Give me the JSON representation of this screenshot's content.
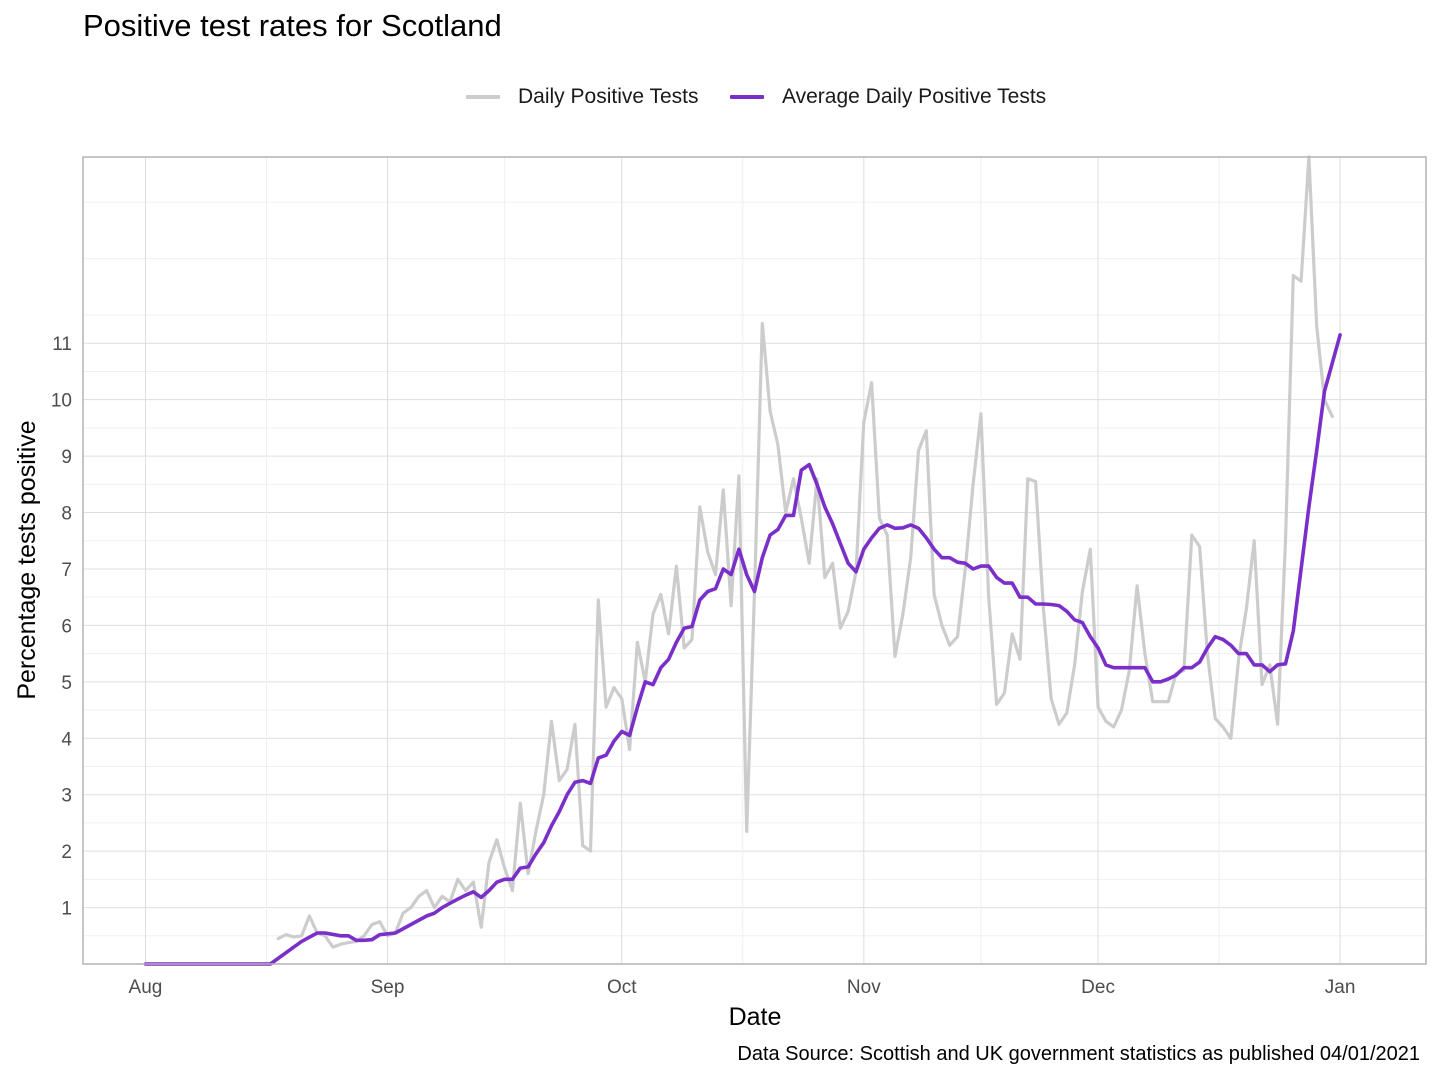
{
  "chart_data": {
    "type": "line",
    "title": "Positive test rates for Scotland",
    "xlabel": "Date",
    "ylabel": "Percentage tests positive",
    "caption": "Data Source: Scottish and UK government statistics as published 04/01/2021",
    "x_ticks": [
      {
        "date": "2020-08-01",
        "label": "Aug"
      },
      {
        "date": "2020-09-01",
        "label": "Sep"
      },
      {
        "date": "2020-10-01",
        "label": "Oct"
      },
      {
        "date": "2020-11-01",
        "label": "Nov"
      },
      {
        "date": "2020-12-01",
        "label": "Dec"
      },
      {
        "date": "2021-01-01",
        "label": "Jan"
      }
    ],
    "xlim": [
      "2020-07-24",
      "2021-01-12"
    ],
    "ylim": [
      0,
      14.3
    ],
    "y_ticks": [
      1,
      2,
      3,
      4,
      5,
      6,
      7,
      8,
      9,
      10,
      11
    ],
    "grid": true,
    "legend_position": "top",
    "series": [
      {
        "name": "Daily Positive Tests",
        "color": "#cccccc",
        "points": [
          [
            "2020-08-18",
            0.45
          ],
          [
            "2020-08-19",
            0.52
          ],
          [
            "2020-08-20",
            0.48
          ],
          [
            "2020-08-21",
            0.5
          ],
          [
            "2020-08-22",
            0.85
          ],
          [
            "2020-08-23",
            0.55
          ],
          [
            "2020-08-24",
            0.5
          ],
          [
            "2020-08-25",
            0.3
          ],
          [
            "2020-08-26",
            0.35
          ],
          [
            "2020-08-27",
            0.38
          ],
          [
            "2020-08-28",
            0.4
          ],
          [
            "2020-08-29",
            0.5
          ],
          [
            "2020-08-30",
            0.7
          ],
          [
            "2020-08-31",
            0.75
          ],
          [
            "2020-09-01",
            0.5
          ],
          [
            "2020-09-02",
            0.55
          ],
          [
            "2020-09-03",
            0.9
          ],
          [
            "2020-09-04",
            1.0
          ],
          [
            "2020-09-05",
            1.2
          ],
          [
            "2020-09-06",
            1.3
          ],
          [
            "2020-09-07",
            1.0
          ],
          [
            "2020-09-08",
            1.2
          ],
          [
            "2020-09-09",
            1.1
          ],
          [
            "2020-09-10",
            1.5
          ],
          [
            "2020-09-11",
            1.3
          ],
          [
            "2020-09-12",
            1.45
          ],
          [
            "2020-09-13",
            0.65
          ],
          [
            "2020-09-14",
            1.8
          ],
          [
            "2020-09-15",
            2.2
          ],
          [
            "2020-09-16",
            1.7
          ],
          [
            "2020-09-17",
            1.3
          ],
          [
            "2020-09-18",
            2.85
          ],
          [
            "2020-09-19",
            1.6
          ],
          [
            "2020-09-20",
            2.35
          ],
          [
            "2020-09-21",
            3.0
          ],
          [
            "2020-09-22",
            4.3
          ],
          [
            "2020-09-23",
            3.25
          ],
          [
            "2020-09-24",
            3.45
          ],
          [
            "2020-09-25",
            4.25
          ],
          [
            "2020-09-26",
            2.1
          ],
          [
            "2020-09-27",
            2.0
          ],
          [
            "2020-09-28",
            6.45
          ],
          [
            "2020-09-29",
            4.55
          ],
          [
            "2020-09-30",
            4.9
          ],
          [
            "2020-10-01",
            4.7
          ],
          [
            "2020-10-02",
            3.8
          ],
          [
            "2020-10-03",
            5.7
          ],
          [
            "2020-10-04",
            5.0
          ],
          [
            "2020-10-05",
            6.2
          ],
          [
            "2020-10-06",
            6.55
          ],
          [
            "2020-10-07",
            5.85
          ],
          [
            "2020-10-08",
            7.05
          ],
          [
            "2020-10-09",
            5.6
          ],
          [
            "2020-10-10",
            5.75
          ],
          [
            "2020-10-11",
            8.1
          ],
          [
            "2020-10-12",
            7.3
          ],
          [
            "2020-10-13",
            6.9
          ],
          [
            "2020-10-14",
            8.4
          ],
          [
            "2020-10-15",
            6.35
          ],
          [
            "2020-10-16",
            8.65
          ],
          [
            "2020-10-17",
            2.35
          ],
          [
            "2020-10-18",
            6.6
          ],
          [
            "2020-10-19",
            11.35
          ],
          [
            "2020-10-20",
            9.8
          ],
          [
            "2020-10-21",
            9.2
          ],
          [
            "2020-10-22",
            8.0
          ],
          [
            "2020-10-23",
            8.6
          ],
          [
            "2020-10-24",
            7.9
          ],
          [
            "2020-10-25",
            7.1
          ],
          [
            "2020-10-26",
            8.6
          ],
          [
            "2020-10-27",
            6.85
          ],
          [
            "2020-10-28",
            7.1
          ],
          [
            "2020-10-29",
            5.95
          ],
          [
            "2020-10-30",
            6.25
          ],
          [
            "2020-10-31",
            6.95
          ],
          [
            "2020-11-01",
            9.6
          ],
          [
            "2020-11-02",
            10.3
          ],
          [
            "2020-11-03",
            7.9
          ],
          [
            "2020-11-04",
            7.6
          ],
          [
            "2020-11-05",
            5.45
          ],
          [
            "2020-11-06",
            6.2
          ],
          [
            "2020-11-07",
            7.2
          ],
          [
            "2020-11-08",
            9.1
          ],
          [
            "2020-11-09",
            9.45
          ],
          [
            "2020-11-10",
            6.55
          ],
          [
            "2020-11-11",
            6.0
          ],
          [
            "2020-11-12",
            5.65
          ],
          [
            "2020-11-13",
            5.8
          ],
          [
            "2020-11-14",
            7.0
          ],
          [
            "2020-11-15",
            8.5
          ],
          [
            "2020-11-16",
            9.75
          ],
          [
            "2020-11-17",
            6.5
          ],
          [
            "2020-11-18",
            4.6
          ],
          [
            "2020-11-19",
            4.8
          ],
          [
            "2020-11-20",
            5.85
          ],
          [
            "2020-11-21",
            5.4
          ],
          [
            "2020-11-22",
            8.6
          ],
          [
            "2020-11-23",
            8.55
          ],
          [
            "2020-11-24",
            6.3
          ],
          [
            "2020-11-25",
            4.7
          ],
          [
            "2020-11-26",
            4.25
          ],
          [
            "2020-11-27",
            4.45
          ],
          [
            "2020-11-28",
            5.3
          ],
          [
            "2020-11-29",
            6.6
          ],
          [
            "2020-11-30",
            7.35
          ],
          [
            "2020-12-01",
            4.55
          ],
          [
            "2020-12-02",
            4.3
          ],
          [
            "2020-12-03",
            4.2
          ],
          [
            "2020-12-04",
            4.5
          ],
          [
            "2020-12-05",
            5.2
          ],
          [
            "2020-12-06",
            6.7
          ],
          [
            "2020-12-07",
            5.5
          ],
          [
            "2020-12-08",
            4.65
          ],
          [
            "2020-12-09",
            4.65
          ],
          [
            "2020-12-10",
            4.65
          ],
          [
            "2020-12-11",
            5.15
          ],
          [
            "2020-12-12",
            5.2
          ],
          [
            "2020-12-13",
            7.6
          ],
          [
            "2020-12-14",
            7.4
          ],
          [
            "2020-12-15",
            5.5
          ],
          [
            "2020-12-16",
            4.35
          ],
          [
            "2020-12-17",
            4.2
          ],
          [
            "2020-12-18",
            4.0
          ],
          [
            "2020-12-19",
            5.4
          ],
          [
            "2020-12-20",
            6.3
          ],
          [
            "2020-12-21",
            7.5
          ],
          [
            "2020-12-22",
            4.95
          ],
          [
            "2020-12-23",
            5.3
          ],
          [
            "2020-12-24",
            4.25
          ],
          [
            "2020-12-25",
            7.5
          ],
          [
            "2020-12-26",
            12.2
          ],
          [
            "2020-12-27",
            12.1
          ],
          [
            "2020-12-28",
            14.3
          ],
          [
            "2020-12-29",
            11.3
          ],
          [
            "2020-12-30",
            10.0
          ],
          [
            "2020-12-31",
            9.7
          ]
        ]
      },
      {
        "name": "Average Daily Positive Tests",
        "color": "#7b2fc9",
        "points": [
          [
            "2020-08-01",
            0
          ],
          [
            "2020-08-17",
            0
          ],
          [
            "2020-08-20",
            0.3
          ],
          [
            "2020-08-21",
            0.4
          ],
          [
            "2020-08-23",
            0.55
          ],
          [
            "2020-08-24",
            0.55
          ],
          [
            "2020-08-26",
            0.5
          ],
          [
            "2020-08-27",
            0.5
          ],
          [
            "2020-08-28",
            0.42
          ],
          [
            "2020-08-29",
            0.42
          ],
          [
            "2020-08-30",
            0.43
          ],
          [
            "2020-08-31",
            0.52
          ],
          [
            "2020-09-02",
            0.55
          ],
          [
            "2020-09-04",
            0.7
          ],
          [
            "2020-09-06",
            0.85
          ],
          [
            "2020-09-07",
            0.9
          ],
          [
            "2020-09-08",
            1.0
          ],
          [
            "2020-09-10",
            1.15
          ],
          [
            "2020-09-11",
            1.22
          ],
          [
            "2020-09-12",
            1.28
          ],
          [
            "2020-09-13",
            1.18
          ],
          [
            "2020-09-14",
            1.3
          ],
          [
            "2020-09-15",
            1.45
          ],
          [
            "2020-09-16",
            1.5
          ],
          [
            "2020-09-17",
            1.5
          ],
          [
            "2020-09-18",
            1.7
          ],
          [
            "2020-09-19",
            1.72
          ],
          [
            "2020-09-20",
            1.95
          ],
          [
            "2020-09-21",
            2.15
          ],
          [
            "2020-09-22",
            2.45
          ],
          [
            "2020-09-23",
            2.7
          ],
          [
            "2020-09-24",
            3.0
          ],
          [
            "2020-09-25",
            3.22
          ],
          [
            "2020-09-26",
            3.25
          ],
          [
            "2020-09-27",
            3.2
          ],
          [
            "2020-09-28",
            3.65
          ],
          [
            "2020-09-29",
            3.7
          ],
          [
            "2020-09-30",
            3.95
          ],
          [
            "2020-10-01",
            4.12
          ],
          [
            "2020-10-02",
            4.05
          ],
          [
            "2020-10-03",
            4.55
          ],
          [
            "2020-10-04",
            5.0
          ],
          [
            "2020-10-05",
            4.95
          ],
          [
            "2020-10-06",
            5.25
          ],
          [
            "2020-10-07",
            5.4
          ],
          [
            "2020-10-08",
            5.7
          ],
          [
            "2020-10-09",
            5.95
          ],
          [
            "2020-10-10",
            5.98
          ],
          [
            "2020-10-11",
            6.45
          ],
          [
            "2020-10-12",
            6.6
          ],
          [
            "2020-10-13",
            6.65
          ],
          [
            "2020-10-14",
            7.0
          ],
          [
            "2020-10-15",
            6.9
          ],
          [
            "2020-10-16",
            7.35
          ],
          [
            "2020-10-17",
            6.9
          ],
          [
            "2020-10-18",
            6.6
          ],
          [
            "2020-10-19",
            7.2
          ],
          [
            "2020-10-20",
            7.6
          ],
          [
            "2020-10-21",
            7.7
          ],
          [
            "2020-10-22",
            7.95
          ],
          [
            "2020-10-23",
            7.95
          ],
          [
            "2020-10-24",
            8.75
          ],
          [
            "2020-10-25",
            8.85
          ],
          [
            "2020-10-26",
            8.5
          ],
          [
            "2020-10-27",
            8.1
          ],
          [
            "2020-10-28",
            7.8
          ],
          [
            "2020-10-29",
            7.45
          ],
          [
            "2020-10-30",
            7.1
          ],
          [
            "2020-10-31",
            6.95
          ],
          [
            "2020-11-01",
            7.35
          ],
          [
            "2020-11-02",
            7.55
          ],
          [
            "2020-11-03",
            7.72
          ],
          [
            "2020-11-04",
            7.78
          ],
          [
            "2020-11-05",
            7.72
          ],
          [
            "2020-11-06",
            7.73
          ],
          [
            "2020-11-07",
            7.78
          ],
          [
            "2020-11-08",
            7.72
          ],
          [
            "2020-11-09",
            7.55
          ],
          [
            "2020-11-10",
            7.35
          ],
          [
            "2020-11-11",
            7.2
          ],
          [
            "2020-11-12",
            7.2
          ],
          [
            "2020-11-13",
            7.12
          ],
          [
            "2020-11-14",
            7.1
          ],
          [
            "2020-11-15",
            7.0
          ],
          [
            "2020-11-16",
            7.05
          ],
          [
            "2020-11-17",
            7.05
          ],
          [
            "2020-11-18",
            6.85
          ],
          [
            "2020-11-19",
            6.75
          ],
          [
            "2020-11-20",
            6.75
          ],
          [
            "2020-11-21",
            6.5
          ],
          [
            "2020-11-22",
            6.5
          ],
          [
            "2020-11-23",
            6.38
          ],
          [
            "2020-11-24",
            6.38
          ],
          [
            "2020-11-25",
            6.37
          ],
          [
            "2020-11-26",
            6.35
          ],
          [
            "2020-11-27",
            6.25
          ],
          [
            "2020-11-28",
            6.1
          ],
          [
            "2020-11-29",
            6.05
          ],
          [
            "2020-11-30",
            5.8
          ],
          [
            "2020-12-01",
            5.6
          ],
          [
            "2020-12-02",
            5.3
          ],
          [
            "2020-12-03",
            5.25
          ],
          [
            "2020-12-04",
            5.25
          ],
          [
            "2020-12-05",
            5.25
          ],
          [
            "2020-12-06",
            5.25
          ],
          [
            "2020-12-07",
            5.25
          ],
          [
            "2020-12-08",
            5.0
          ],
          [
            "2020-12-09",
            5.0
          ],
          [
            "2020-12-10",
            5.05
          ],
          [
            "2020-12-11",
            5.12
          ],
          [
            "2020-12-12",
            5.25
          ],
          [
            "2020-12-13",
            5.25
          ],
          [
            "2020-12-14",
            5.35
          ],
          [
            "2020-12-15",
            5.6
          ],
          [
            "2020-12-16",
            5.8
          ],
          [
            "2020-12-17",
            5.75
          ],
          [
            "2020-12-18",
            5.65
          ],
          [
            "2020-12-19",
            5.5
          ],
          [
            "2020-12-20",
            5.5
          ],
          [
            "2020-12-21",
            5.3
          ],
          [
            "2020-12-22",
            5.3
          ],
          [
            "2020-12-23",
            5.18
          ],
          [
            "2020-12-24",
            5.3
          ],
          [
            "2020-12-25",
            5.32
          ],
          [
            "2020-12-26",
            5.9
          ],
          [
            "2020-12-27",
            7.0
          ],
          [
            "2020-12-28",
            8.1
          ],
          [
            "2020-12-29",
            9.1
          ],
          [
            "2020-12-30",
            10.15
          ],
          [
            "2021-01-01",
            11.15
          ]
        ]
      }
    ]
  }
}
